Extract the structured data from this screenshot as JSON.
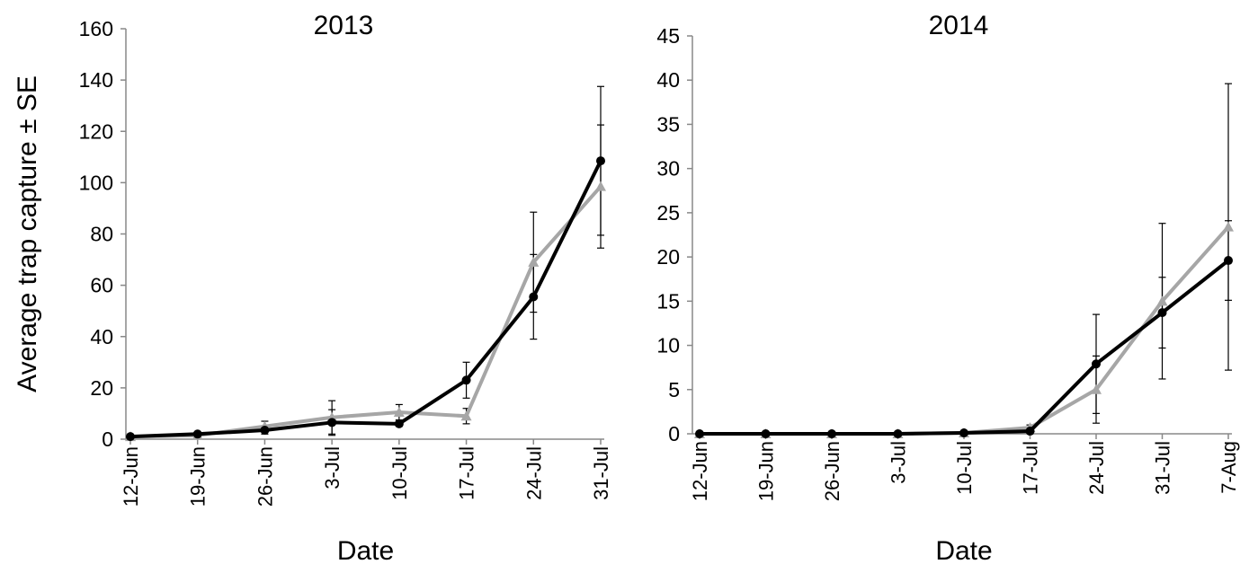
{
  "chart_data": [
    {
      "type": "line",
      "title": "2013",
      "x_label": "Date",
      "y_label": "Average trap capture ± SE",
      "categories": [
        "12-Jun",
        "19-Jun",
        "26-Jun",
        "3-Jul",
        "10-Jul",
        "17-Jul",
        "24-Jul",
        "31-Jul"
      ],
      "ylim": [
        0,
        160
      ],
      "yticks": [
        0,
        20,
        40,
        60,
        80,
        100,
        120,
        140,
        160
      ],
      "series": [
        {
          "color": "#a6a6a6",
          "marker": "triangle",
          "values": [
            1,
            1.5,
            5,
            8.5,
            10.5,
            9,
            69,
            98.5
          ],
          "errors": [
            0.5,
            0.5,
            2,
            6.5,
            3,
            3,
            19.5,
            24
          ]
        },
        {
          "color": "#000000",
          "marker": "circle",
          "values": [
            1,
            2,
            3.5,
            6.5,
            6,
            23,
            55.5,
            108.5
          ],
          "errors": [
            0.5,
            0.5,
            1.5,
            5,
            1,
            7,
            16.5,
            29
          ]
        }
      ]
    },
    {
      "type": "line",
      "title": "2014",
      "x_label": "Date",
      "categories": [
        "12-Jun",
        "19-Jun",
        "26-Jun",
        "3-Jul",
        "10-Jul",
        "17-Jul",
        "24-Jul",
        "31-Jul",
        "7-Aug"
      ],
      "ylim": [
        0,
        45
      ],
      "yticks": [
        0,
        5,
        10,
        15,
        20,
        25,
        30,
        35,
        40,
        45
      ],
      "series": [
        {
          "color": "#a6a6a6",
          "marker": "triangle",
          "values": [
            0,
            0,
            0,
            0,
            0.1,
            0.7,
            5,
            15,
            23.4
          ],
          "errors": [
            0,
            0,
            0,
            0,
            0.1,
            0.3,
            3.8,
            8.8,
            16.2
          ]
        },
        {
          "color": "#000000",
          "marker": "circle",
          "values": [
            0,
            0,
            0,
            0,
            0.1,
            0.3,
            7.9,
            13.7,
            19.6
          ],
          "errors": [
            0,
            0,
            0,
            0,
            0.1,
            0.2,
            5.6,
            4,
            4.5
          ]
        }
      ]
    }
  ]
}
